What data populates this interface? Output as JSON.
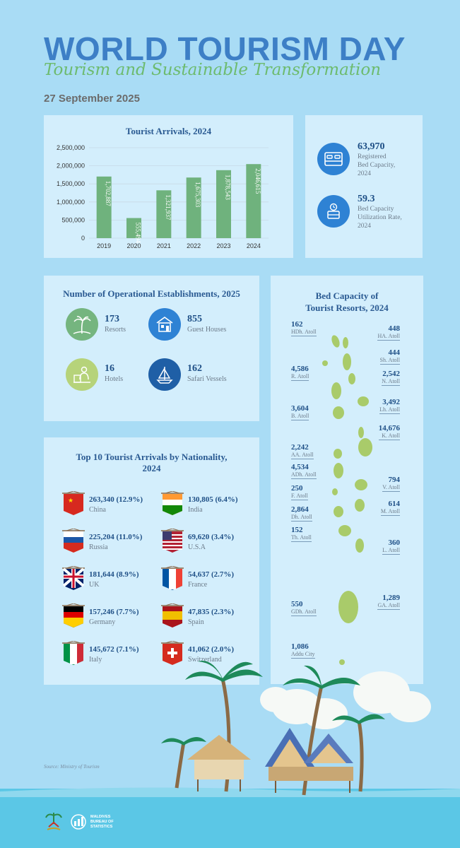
{
  "header": {
    "title": "WORLD TOURISM DAY",
    "subtitle": "Tourism and Sustainable Transformation",
    "date": "27 September 2025"
  },
  "chart_data": {
    "type": "bar",
    "title": "Tourist Arrivals, 2024",
    "categories": [
      "2019",
      "2020",
      "2021",
      "2022",
      "2023",
      "2024"
    ],
    "values": [
      1702887,
      555494,
      1321937,
      1675303,
      1878543,
      2046615
    ],
    "value_labels": [
      "1,702,887",
      "555,494",
      "1,321,937",
      "1,675,303",
      "1,878,543",
      "2,046,615"
    ],
    "ylim": [
      0,
      2500000
    ],
    "yticks": [
      "2,500,000",
      "2,000,000",
      "1,500,000",
      "1,000,000",
      "500,000",
      "0"
    ],
    "bar_color": "#6fb27d"
  },
  "beds": {
    "capacity": {
      "value": "63,970",
      "label_line1": "Registered",
      "label_line2": "Bed Capacity,",
      "label_line3": "2024"
    },
    "utilization": {
      "value": "59.3",
      "label_line1": "Bed Capacity",
      "label_line2": "Utilization Rate,",
      "label_line3": "2024"
    }
  },
  "establishments": {
    "title": "Number of Operational Establishments, 2025",
    "items": [
      {
        "value": "173",
        "label": "Resorts"
      },
      {
        "value": "855",
        "label": "Guest Houses"
      },
      {
        "value": "16",
        "label": "Hotels"
      },
      {
        "value": "162",
        "label": "Safari Vessels"
      }
    ]
  },
  "nationality": {
    "title_line1": "Top 10 Tourist Arrivals by Nationality,",
    "title_line2": "2024",
    "items": [
      {
        "value": "263,340 (12.9%)",
        "country": "China"
      },
      {
        "value": "130,805 (6.4%)",
        "country": "India"
      },
      {
        "value": "225,204 (11.0%)",
        "country": "Russia"
      },
      {
        "value": "69,620 (3.4%)",
        "country": "U.S.A"
      },
      {
        "value": "181,644 (8.9%)",
        "country": "UK"
      },
      {
        "value": "54,637 (2.7%)",
        "country": "France"
      },
      {
        "value": "157,246 (7.7%)",
        "country": "Germany"
      },
      {
        "value": "47,835 (2.3%)",
        "country": "Spain"
      },
      {
        "value": "145,672 (7.1%)",
        "country": "Italy"
      },
      {
        "value": "41,062 (2.0%)",
        "country": "Switzerland"
      }
    ]
  },
  "bedmap": {
    "title_line1": "Bed Capacity of",
    "title_line2": "Tourist Resorts, 2024",
    "left": [
      {
        "value": "162",
        "atoll": "HDh. Atoll"
      },
      {
        "value": "4,586",
        "atoll": "R. Atoll"
      },
      {
        "value": "3,604",
        "atoll": "B. Atoll"
      },
      {
        "value": "2,242",
        "atoll": "AA. Atoll"
      },
      {
        "value": "4,534",
        "atoll": "ADh. Atoll"
      },
      {
        "value": "250",
        "atoll": "F. Atoll"
      },
      {
        "value": "2,864",
        "atoll": "Dh. Atoll"
      },
      {
        "value": "152",
        "atoll": "Th. Atoll"
      },
      {
        "value": "550",
        "atoll": "GDh. Atoll"
      },
      {
        "value": "1,086",
        "atoll": "Addu City"
      }
    ],
    "right": [
      {
        "value": "448",
        "atoll": "HA. Atoll"
      },
      {
        "value": "444",
        "atoll": "Sh. Atoll"
      },
      {
        "value": "2,542",
        "atoll": "N. Atoll"
      },
      {
        "value": "3,492",
        "atoll": "Lh. Atoll"
      },
      {
        "value": "14,676",
        "atoll": "K. Atoll"
      },
      {
        "value": "794",
        "atoll": "V. Atoll"
      },
      {
        "value": "614",
        "atoll": "M. Atoll"
      },
      {
        "value": "360",
        "atoll": "L. Atoll"
      },
      {
        "value": "1,289",
        "atoll": "GA. Atoll"
      }
    ]
  },
  "source": "Source: Ministry of Tourism",
  "footer": {
    "logo_line1": "MALDIVES",
    "logo_line2": "BUREAU OF",
    "logo_line3": "STATISTICS"
  }
}
